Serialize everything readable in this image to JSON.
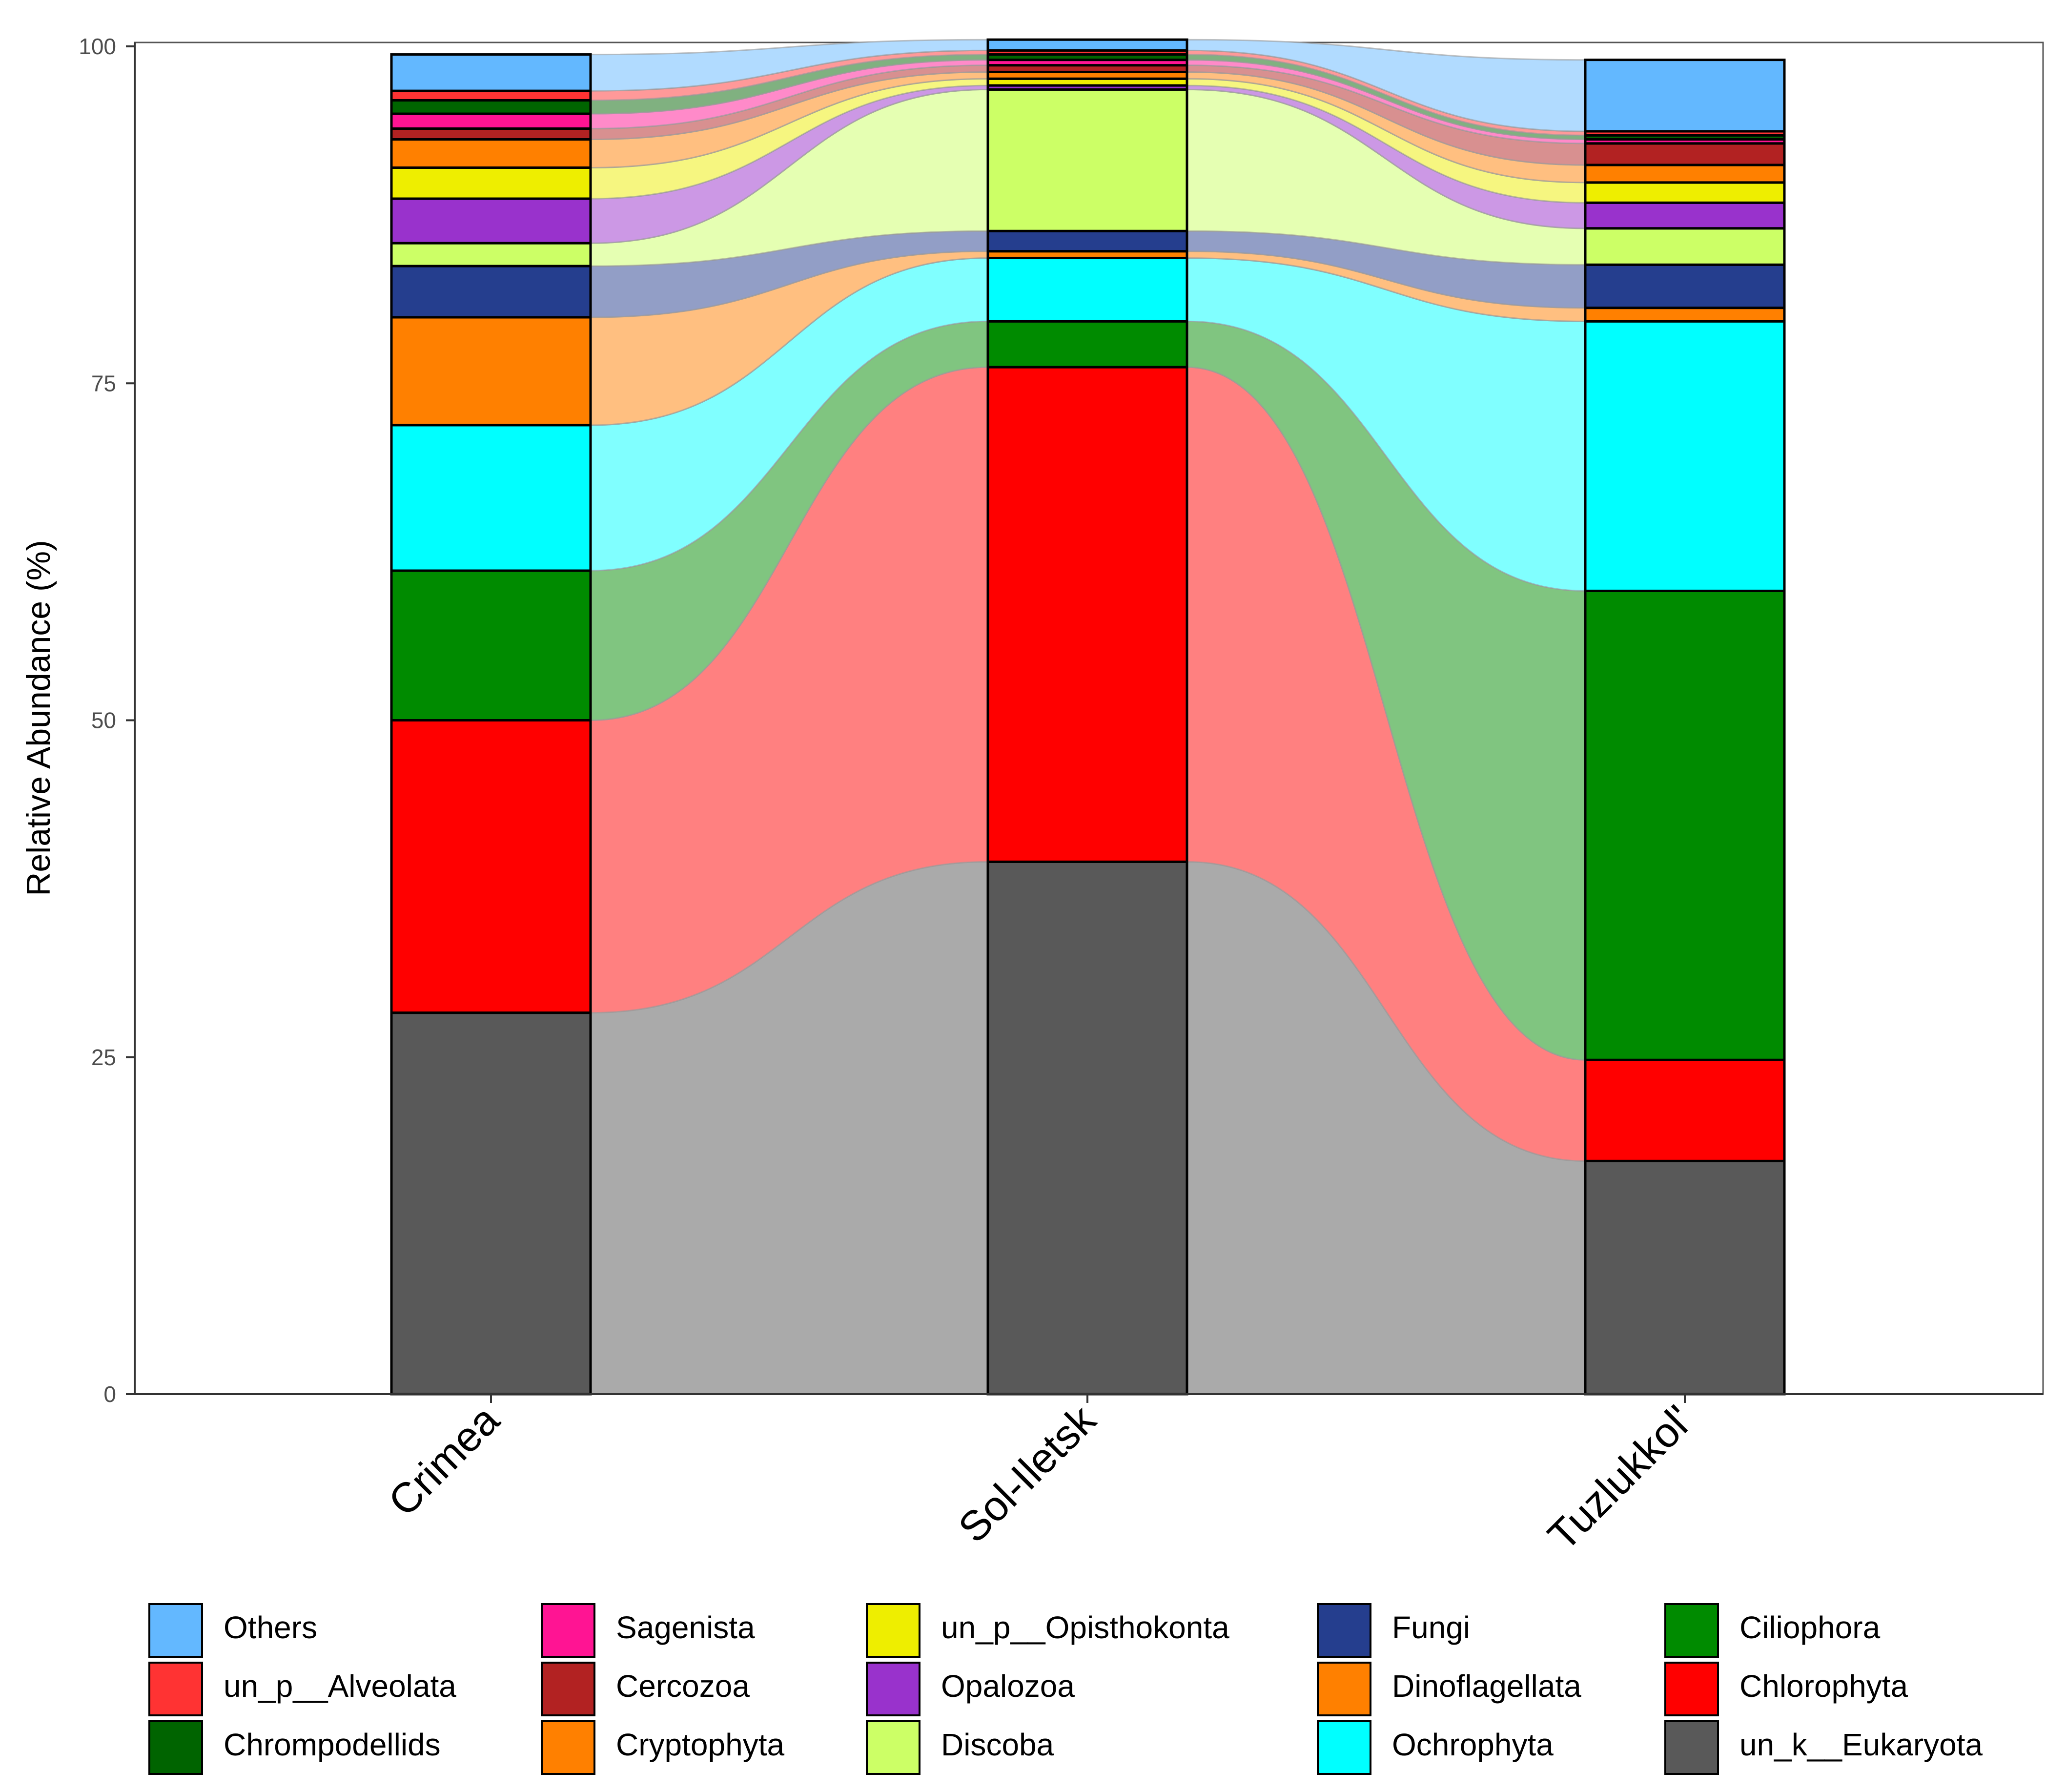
{
  "chart_data": {
    "type": "bar",
    "stacked": true,
    "alluvial_flows": true,
    "title": "",
    "xlabel": "",
    "ylabel": "Relative Abundance (%)",
    "ylim": [
      0,
      100
    ],
    "yticks": [
      "0",
      "25",
      "50",
      "75",
      "100"
    ],
    "ytick_values": [
      0,
      25,
      50,
      75,
      100
    ],
    "categories": [
      "Crimea",
      "Sol-Iletsk",
      "Tuzlukkol'"
    ],
    "legend_position": "bottom",
    "series": [
      {
        "name": "un_k__Eukaryota",
        "color": "#595959",
        "flow_color": "#AAAAAA",
        "values": [
          28.3,
          39.5,
          17.3
        ]
      },
      {
        "name": "Chlorophyta",
        "color": "#FF0000",
        "flow_color": "#FF8080",
        "values": [
          21.7,
          36.7,
          7.5
        ]
      },
      {
        "name": "Ciliophora",
        "color": "#008B00",
        "flow_color": "#80C580",
        "values": [
          11.1,
          3.4,
          34.8
        ]
      },
      {
        "name": "Ochrophyta",
        "color": "#00FFFF",
        "flow_color": "#80FFFF",
        "values": [
          10.8,
          4.7,
          20.0
        ]
      },
      {
        "name": "Dinoflagellata",
        "color": "#FF8000",
        "flow_color": "#FFBF80",
        "values": [
          8.0,
          0.5,
          1.0
        ]
      },
      {
        "name": "Fungi",
        "color": "#253E8E",
        "flow_color": "#929EC6",
        "values": [
          3.8,
          1.5,
          3.2
        ]
      },
      {
        "name": "Discoba",
        "color": "#CCFF66",
        "flow_color": "#E5FFB2",
        "values": [
          1.7,
          10.5,
          2.7
        ]
      },
      {
        "name": "Opalozoa",
        "color": "#9932CC",
        "flow_color": "#CC98E5",
        "values": [
          3.3,
          0.3,
          1.9
        ]
      },
      {
        "name": "un_p__Opisthokonta",
        "color": "#EEEE00",
        "flow_color": "#F6F680",
        "values": [
          2.3,
          0.5,
          1.5
        ]
      },
      {
        "name": "Cryptophyta",
        "color": "#FF8000",
        "flow_color": "#FFBF80",
        "values": [
          2.1,
          0.5,
          1.3
        ]
      },
      {
        "name": "Cercozoa",
        "color": "#B22222",
        "flow_color": "#D89090",
        "values": [
          0.8,
          0.5,
          1.6
        ]
      },
      {
        "name": "Sagenista",
        "color": "#FF1493",
        "flow_color": "#FF8AC9",
        "values": [
          1.1,
          0.4,
          0.3
        ]
      },
      {
        "name": "Chrompodellids",
        "color": "#006400",
        "flow_color": "#80B180",
        "values": [
          1.0,
          0.4,
          0.3
        ]
      },
      {
        "name": "un_p__Alveolata",
        "color": "#FF3333",
        "flow_color": "#FF9999",
        "values": [
          0.7,
          0.3,
          0.3
        ]
      },
      {
        "name": "Others",
        "color": "#63B8FF",
        "flow_color": "#B1DBFF",
        "values": [
          2.7,
          0.8,
          5.3
        ]
      }
    ],
    "legend": [
      [
        "Others",
        "un_p__Alveolata",
        "Chrompodellids"
      ],
      [
        "Sagenista",
        "Cercozoa",
        "Cryptophyta"
      ],
      [
        "un_p__Opisthokonta",
        "Opalozoa",
        "Discoba"
      ],
      [
        "Fungi",
        "Dinoflagellata",
        "Ochrophyta"
      ],
      [
        "Ciliophora",
        "Chlorophyta",
        "un_k__Eukaryota"
      ]
    ]
  }
}
